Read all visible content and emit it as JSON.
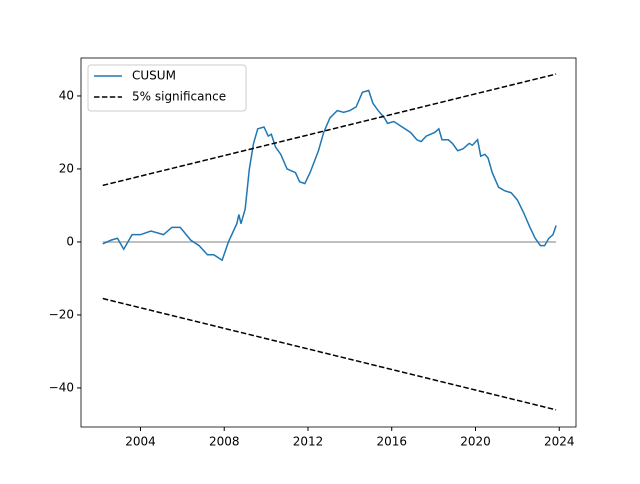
{
  "chart_data": {
    "type": "line",
    "xlim": [
      2001.16,
      2024.8
    ],
    "ylim": [
      -50.7,
      50.4
    ],
    "xticks": [
      2004,
      2008,
      2012,
      2016,
      2020,
      2024
    ],
    "yticks": [
      {
        "value": -40,
        "label": "−40"
      },
      {
        "value": -20,
        "label": "−20"
      },
      0,
      20,
      40
    ],
    "legend": "upper left",
    "zero_line": {
      "y": 0,
      "color": "#aaaaaa"
    },
    "series": [
      {
        "name": "CUSUM",
        "color": "#1f77b4",
        "dashed": false,
        "x": [
          2002.2,
          2002.6,
          2002.9,
          2003.2,
          2003.6,
          2004.0,
          2004.5,
          2005.1,
          2005.5,
          2005.9,
          2006.4,
          2006.8,
          2007.2,
          2007.5,
          2007.9,
          2008.2,
          2008.6,
          2008.7,
          2008.8,
          2009.0,
          2009.2,
          2009.4,
          2009.6,
          2009.9,
          2010.1,
          2010.25,
          2010.45,
          2010.7,
          2011.0,
          2011.4,
          2011.6,
          2011.85,
          2012.1,
          2012.5,
          2012.75,
          2013.05,
          2013.4,
          2013.7,
          2014.0,
          2014.3,
          2014.6,
          2014.9,
          2015.1,
          2015.35,
          2015.65,
          2015.8,
          2016.1,
          2016.5,
          2016.9,
          2017.2,
          2017.4,
          2017.65,
          2018.05,
          2018.25,
          2018.4,
          2018.7,
          2018.9,
          2019.15,
          2019.4,
          2019.7,
          2019.85,
          2020.1,
          2020.25,
          2020.45,
          2020.6,
          2020.8,
          2021.1,
          2021.4,
          2021.7,
          2022.0,
          2022.3,
          2022.6,
          2022.85,
          2023.1,
          2023.3,
          2023.5,
          2023.7,
          2023.85
        ],
        "values": [
          -0.5,
          0.5,
          1,
          -2,
          2,
          2,
          3,
          2,
          4,
          4,
          0.5,
          -1,
          -3.5,
          -3.5,
          -5,
          0,
          5,
          7.5,
          5,
          9,
          20,
          27,
          31,
          31.5,
          29,
          29.5,
          26,
          24,
          20,
          19,
          16.5,
          16,
          19,
          25,
          30,
          34,
          36,
          35.5,
          36,
          37,
          41,
          41.5,
          38,
          36,
          34,
          32.5,
          33,
          31.5,
          30,
          28,
          27.5,
          29,
          30,
          31,
          28,
          28,
          27,
          25,
          25.5,
          27,
          26.5,
          28,
          23.5,
          24,
          23,
          19,
          15,
          14,
          13.5,
          11.5,
          8,
          4,
          1,
          -1,
          -1,
          1,
          2,
          4.5
        ]
      },
      {
        "name": "5% significance",
        "color": "#000000",
        "dashed": true,
        "x": [
          2002.2,
          2023.85
        ],
        "values": [
          15.5,
          46
        ],
        "lower_values": [
          -15.5,
          -46
        ]
      }
    ]
  }
}
